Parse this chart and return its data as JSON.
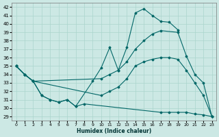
{
  "xlabel": "Humidex (Indice chaleur)",
  "background_color": "#cce8e4",
  "grid_color": "#aad4cc",
  "line_color": "#006666",
  "xlim": [
    -0.5,
    23.5
  ],
  "ylim": [
    28.5,
    42.5
  ],
  "yticks": [
    29,
    30,
    31,
    32,
    33,
    34,
    35,
    36,
    37,
    38,
    39,
    40,
    41,
    42
  ],
  "xticks": [
    0,
    1,
    2,
    3,
    4,
    5,
    6,
    7,
    8,
    9,
    10,
    11,
    12,
    13,
    14,
    15,
    16,
    17,
    18,
    19,
    20,
    21,
    22,
    23
  ],
  "line1_x": [
    0,
    1,
    2,
    3,
    4,
    5,
    6,
    7,
    9,
    10,
    11,
    12,
    13,
    14,
    15,
    16,
    17,
    18,
    19
  ],
  "line1_y": [
    35.0,
    34.0,
    33.2,
    31.5,
    31.0,
    30.7,
    31.0,
    30.2,
    33.2,
    34.8,
    37.2,
    34.5,
    37.2,
    41.3,
    41.8,
    41.0,
    40.3,
    40.2,
    39.3
  ],
  "line2_x": [
    0,
    1,
    2,
    10,
    11,
    12,
    13,
    14,
    15,
    16,
    17,
    19,
    20,
    21,
    22,
    23
  ],
  "line2_y": [
    35.0,
    34.0,
    33.2,
    33.5,
    34.0,
    34.5,
    35.5,
    37.0,
    38.0,
    38.8,
    39.2,
    39.0,
    36.2,
    34.0,
    33.0,
    29.0
  ],
  "line3_x": [
    0,
    1,
    2,
    10,
    11,
    12,
    13,
    14,
    15,
    16,
    17,
    18,
    19,
    20,
    21,
    22,
    23
  ],
  "line3_y": [
    35.0,
    34.0,
    33.2,
    31.5,
    32.0,
    32.5,
    33.5,
    35.0,
    35.5,
    35.8,
    36.0,
    36.0,
    35.8,
    34.5,
    33.0,
    31.5,
    29.0
  ],
  "line4_x": [
    0,
    1,
    2,
    3,
    4,
    5,
    6,
    7,
    8,
    17,
    18,
    19,
    20,
    21,
    22,
    23
  ],
  "line4_y": [
    35.0,
    34.0,
    33.2,
    31.5,
    31.0,
    30.7,
    31.0,
    30.2,
    30.5,
    29.5,
    29.5,
    29.5,
    29.5,
    29.3,
    29.2,
    29.0
  ]
}
